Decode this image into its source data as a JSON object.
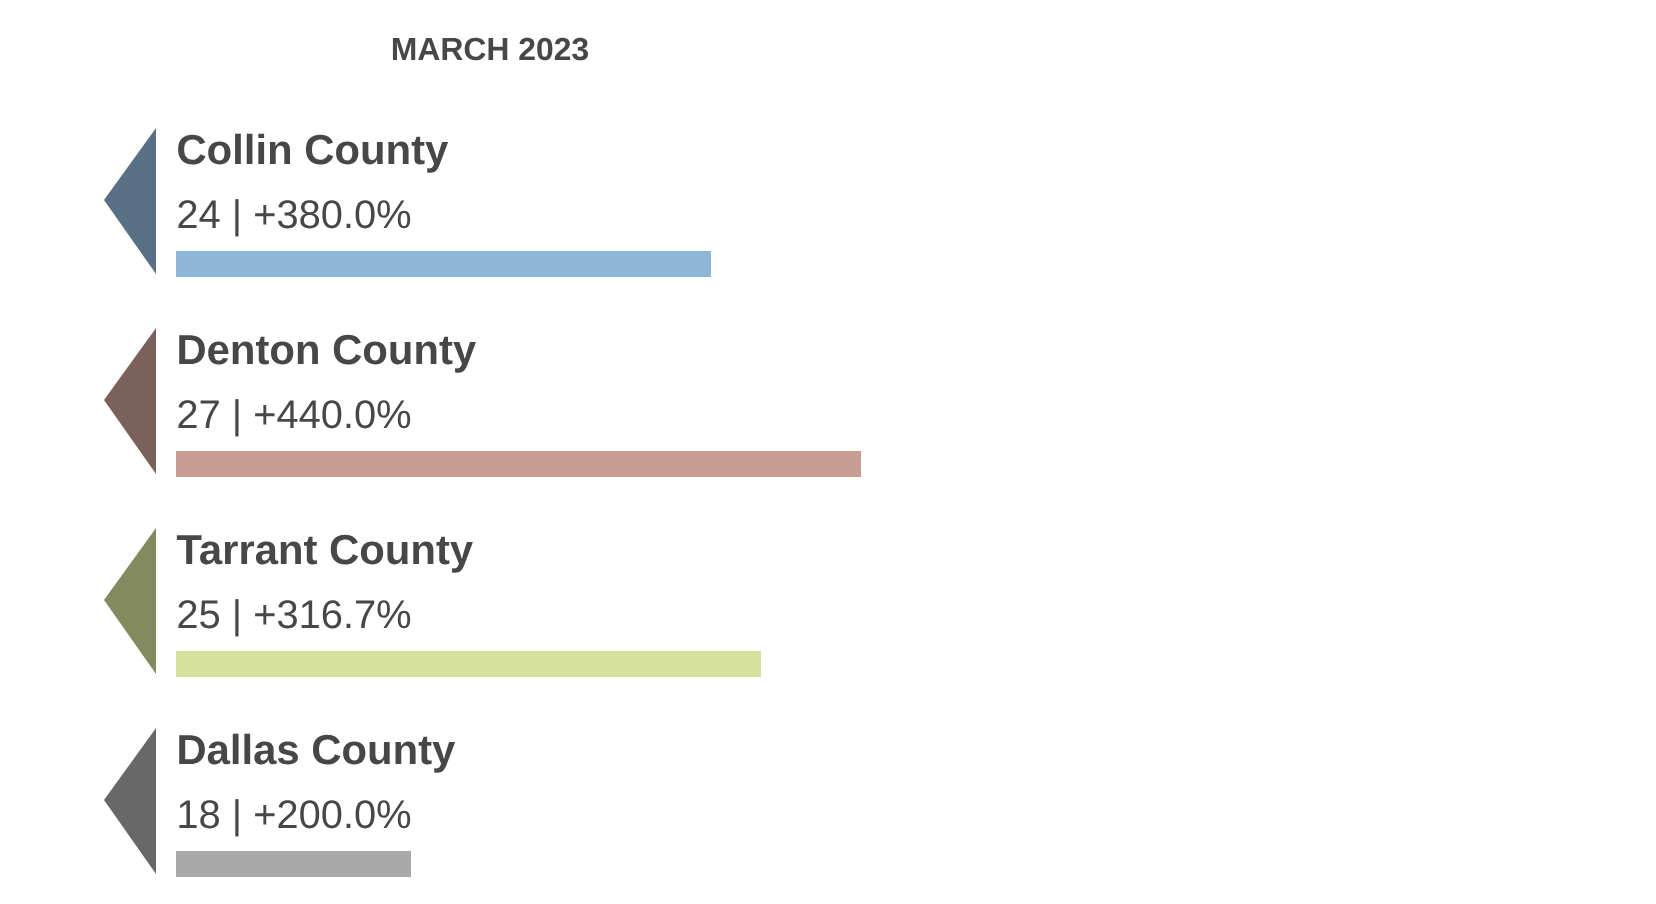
{
  "chart_data": {
    "type": "bar",
    "orientation": "horizontal",
    "title": "MARCH 2023",
    "xlim": [
      13.3,
      27.06
    ],
    "categories": [
      "Collin County",
      "Denton County",
      "Tarrant County",
      "Dallas County"
    ],
    "values": [
      24,
      27,
      25,
      18
    ],
    "colors": [
      "#8db6d8",
      "#c89d94",
      "#d4e09b",
      "#a9a9a9"
    ],
    "value_labels": [
      "24 | +380.0%",
      "27 | +440.0%",
      "25 | +316.7%",
      "18 | +200.0%"
    ]
  }
}
